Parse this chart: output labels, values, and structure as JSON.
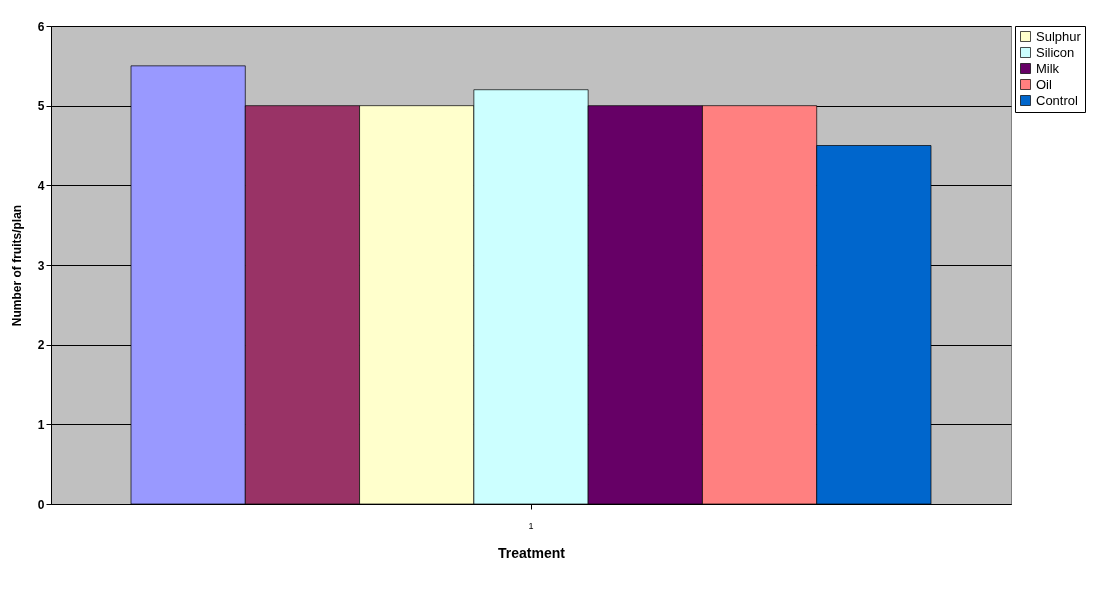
{
  "chart_data": {
    "type": "bar",
    "xlabel": "Treatment",
    "ylabel": "Number of fruits/plan",
    "categories": [
      "1"
    ],
    "series": [
      {
        "color": "#9999ff",
        "values": [
          5.5
        ]
      },
      {
        "color": "#993366",
        "values": [
          5
        ]
      },
      {
        "name": "Sulphur",
        "color": "#ffffcc",
        "values": [
          5
        ]
      },
      {
        "name": "Silicon",
        "color": "#ccffff",
        "values": [
          5.2
        ]
      },
      {
        "name": "Milk",
        "color": "#660066",
        "values": [
          5
        ]
      },
      {
        "name": "Oil",
        "color": "#ff8080",
        "values": [
          5
        ]
      },
      {
        "name": "Control",
        "color": "#0066cc",
        "values": [
          4.5
        ]
      }
    ],
    "ylim": [
      0,
      6
    ],
    "yticks": [
      0,
      1,
      2,
      3,
      4,
      5,
      6
    ],
    "grid": "y",
    "legend": "top right"
  }
}
